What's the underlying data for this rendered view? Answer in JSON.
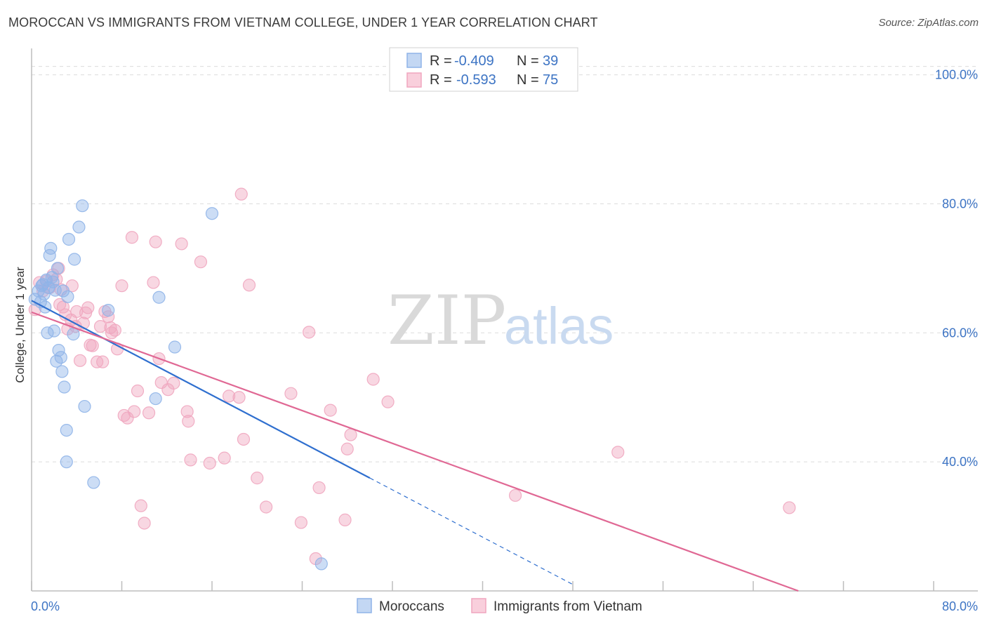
{
  "title": "MOROCCAN VS IMMIGRANTS FROM VIETNAM COLLEGE, UNDER 1 YEAR CORRELATION CHART",
  "source": "Source: ZipAtlas.com",
  "watermark": {
    "zip": "ZIP",
    "atlas": "atlas"
  },
  "colors": {
    "moroccans": "#8fb4e8",
    "moroccans_line": "#2f6fcf",
    "vietnam": "#f0a6bf",
    "vietnam_line": "#e06894",
    "tick_text": "#3d74c4",
    "grid": "#dcdcdc"
  },
  "legend": {
    "r_label": "R =",
    "n_label": "N =",
    "moroccans_r": "-0.409",
    "moroccans_n": "39",
    "vietnam_r": "-0.593",
    "vietnam_n": "75"
  },
  "chart_data": {
    "type": "scatter",
    "title": "MOROCCAN VS IMMIGRANTS FROM VIETNAM COLLEGE, UNDER 1 YEAR CORRELATION CHART",
    "xlabel": "",
    "ylabel": "College, Under 1 year",
    "xlim": [
      0,
      80
    ],
    "ylim": [
      20,
      103
    ],
    "x_tick_labels": [
      "0.0%",
      "80.0%"
    ],
    "y_ticks": [
      40,
      60,
      80,
      100
    ],
    "y_tick_labels": [
      "40.0%",
      "60.0%",
      "80.0%",
      "100.0%"
    ],
    "grid": true,
    "legend_position": "top-center",
    "series": [
      {
        "name": "Moroccans",
        "r": -0.409,
        "n": 39,
        "trend": {
          "x0": 0.0,
          "y0": 65.0,
          "x1": 30.0,
          "y1": 37.5,
          "dash_to_x": 48.0
        },
        "points": [
          [
            0.3,
            65.2
          ],
          [
            0.6,
            66.5
          ],
          [
            0.8,
            64.8
          ],
          [
            1.0,
            67.5
          ],
          [
            1.1,
            66.0
          ],
          [
            1.3,
            68.2
          ],
          [
            1.5,
            67.0
          ],
          [
            1.2,
            64.0
          ],
          [
            1.4,
            60.0
          ],
          [
            1.6,
            72.0
          ],
          [
            1.7,
            73.1
          ],
          [
            1.8,
            68.6
          ],
          [
            2.0,
            60.3
          ],
          [
            2.1,
            66.6
          ],
          [
            2.2,
            55.6
          ],
          [
            2.3,
            70.0
          ],
          [
            2.4,
            57.3
          ],
          [
            2.6,
            56.2
          ],
          [
            2.8,
            66.5
          ],
          [
            2.7,
            54.0
          ],
          [
            2.9,
            51.6
          ],
          [
            3.1,
            44.9
          ],
          [
            3.2,
            65.6
          ],
          [
            3.1,
            40.0
          ],
          [
            3.3,
            74.5
          ],
          [
            3.7,
            59.8
          ],
          [
            3.8,
            71.4
          ],
          [
            4.2,
            76.4
          ],
          [
            4.5,
            79.7
          ],
          [
            4.7,
            48.6
          ],
          [
            5.5,
            36.8
          ],
          [
            6.8,
            63.5
          ],
          [
            11.3,
            65.5
          ],
          [
            12.7,
            57.8
          ],
          [
            16.0,
            78.5
          ],
          [
            11.0,
            49.8
          ],
          [
            25.7,
            24.2
          ],
          [
            0.9,
            67.3
          ],
          [
            1.9,
            67.9
          ]
        ]
      },
      {
        "name": "Immigrants from Vietnam",
        "r": -0.593,
        "n": 75,
        "trend": {
          "x0": 0.0,
          "y0": 63.2,
          "x1": 68.0,
          "y1": 20.0
        },
        "points": [
          [
            0.3,
            63.6
          ],
          [
            0.7,
            67.8
          ],
          [
            1.0,
            66.5
          ],
          [
            1.3,
            68.0
          ],
          [
            1.6,
            67.0
          ],
          [
            1.9,
            69.0
          ],
          [
            2.2,
            68.3
          ],
          [
            2.4,
            70.0
          ],
          [
            2.6,
            66.7
          ],
          [
            2.8,
            64.0
          ],
          [
            3.0,
            62.8
          ],
          [
            3.2,
            60.6
          ],
          [
            3.5,
            62.0
          ],
          [
            3.6,
            67.3
          ],
          [
            3.9,
            61.0
          ],
          [
            4.3,
            55.7
          ],
          [
            4.6,
            61.5
          ],
          [
            4.8,
            63.1
          ],
          [
            5.0,
            63.9
          ],
          [
            5.2,
            58.1
          ],
          [
            5.4,
            58.0
          ],
          [
            5.8,
            55.5
          ],
          [
            6.1,
            61.0
          ],
          [
            6.3,
            55.5
          ],
          [
            6.5,
            63.3
          ],
          [
            6.8,
            62.5
          ],
          [
            7.1,
            60.0
          ],
          [
            7.4,
            60.4
          ],
          [
            7.6,
            57.5
          ],
          [
            8.0,
            67.3
          ],
          [
            8.2,
            47.2
          ],
          [
            8.5,
            46.8
          ],
          [
            8.9,
            74.8
          ],
          [
            9.1,
            47.8
          ],
          [
            9.4,
            51.0
          ],
          [
            9.7,
            33.2
          ],
          [
            10.0,
            30.5
          ],
          [
            10.4,
            47.6
          ],
          [
            10.8,
            67.8
          ],
          [
            11.0,
            74.1
          ],
          [
            11.3,
            56.0
          ],
          [
            11.5,
            52.3
          ],
          [
            12.1,
            51.2
          ],
          [
            12.6,
            52.2
          ],
          [
            13.3,
            73.8
          ],
          [
            13.8,
            47.8
          ],
          [
            13.9,
            46.3
          ],
          [
            14.1,
            40.3
          ],
          [
            15.0,
            71.0
          ],
          [
            15.8,
            39.8
          ],
          [
            17.1,
            40.6
          ],
          [
            17.5,
            50.2
          ],
          [
            18.4,
            50.0
          ],
          [
            18.6,
            81.5
          ],
          [
            18.8,
            43.5
          ],
          [
            19.3,
            67.4
          ],
          [
            20.0,
            37.5
          ],
          [
            20.8,
            33.0
          ],
          [
            23.0,
            50.6
          ],
          [
            23.9,
            30.6
          ],
          [
            24.6,
            60.1
          ],
          [
            25.2,
            25.0
          ],
          [
            25.5,
            36.0
          ],
          [
            26.5,
            48.0
          ],
          [
            27.8,
            31.0
          ],
          [
            28.0,
            42.0
          ],
          [
            28.3,
            44.2
          ],
          [
            30.3,
            52.8
          ],
          [
            31.6,
            49.3
          ],
          [
            42.9,
            34.8
          ],
          [
            52.0,
            41.5
          ],
          [
            67.2,
            32.9
          ],
          [
            2.5,
            64.4
          ],
          [
            4.0,
            63.3
          ],
          [
            7.0,
            60.8
          ]
        ]
      }
    ]
  }
}
